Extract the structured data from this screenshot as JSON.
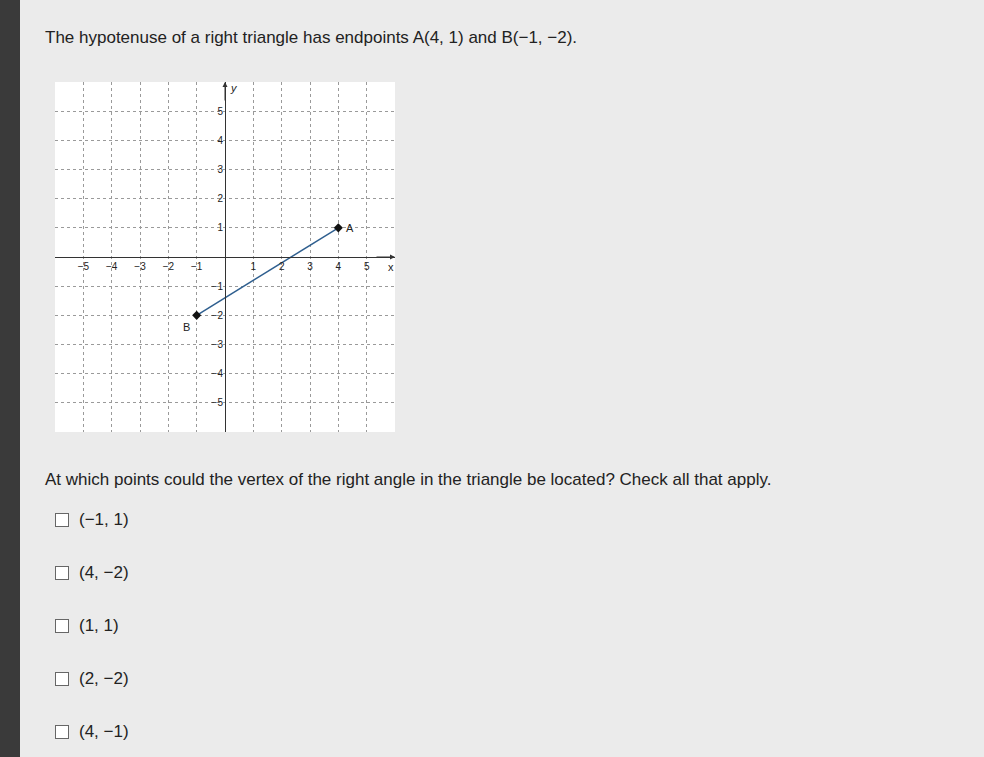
{
  "header": "The hypotenuse of a right triangle has endpoints A(4, 1) and B(−1, −2).",
  "chart_data": {
    "type": "line",
    "x": [
      -1,
      4
    ],
    "values": [
      -2,
      1
    ],
    "xlabel": "x",
    "ylabel": "y",
    "xlim": [
      -6,
      6
    ],
    "ylim": [
      -6,
      6
    ],
    "xticks": [
      -5,
      -4,
      -3,
      -2,
      -1,
      1,
      2,
      3,
      4,
      5
    ],
    "yticks": [
      -5,
      -4,
      -3,
      -2,
      -1,
      1,
      2,
      3,
      4,
      5
    ],
    "grid": true,
    "color": "#2f5f8f",
    "marker": "diamond",
    "annotations": [
      {
        "text": "B",
        "x": -1,
        "y": -2
      },
      {
        "text": "A",
        "x": 4,
        "y": 1
      }
    ]
  },
  "question": "At which points could the vertex of the right angle in the triangle be located? Check all that apply.",
  "options": [
    "(−1, 1)",
    "(4, −2)",
    "(1, 1)",
    "(2, −2)",
    "(4, −1)"
  ]
}
